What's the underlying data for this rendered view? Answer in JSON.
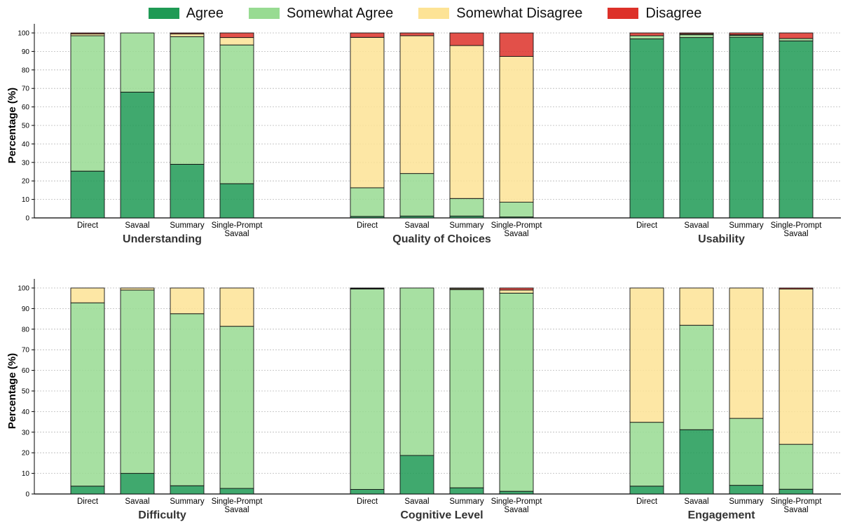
{
  "legend": [
    {
      "label": "Agree",
      "color": "#1f9a55"
    },
    {
      "label": "Somewhat Agree",
      "color": "#98db92"
    },
    {
      "label": "Somewhat Disagree",
      "color": "#fde395"
    },
    {
      "label": "Disagree",
      "color": "#dd3129"
    }
  ],
  "chart_data": [
    {
      "type": "bar",
      "stacked": true,
      "title": "Understanding",
      "ylabel": "Percentage (%)",
      "ylim": [
        0,
        100
      ],
      "categories": [
        "Direct",
        "Savaal",
        "Summary",
        "Single-Prompt\nSavaal"
      ],
      "series": [
        {
          "name": "Agree",
          "values": [
            25.3,
            68.0,
            29.0,
            18.5
          ]
        },
        {
          "name": "Somewhat Agree",
          "values": [
            73.2,
            32.0,
            69.0,
            75.0
          ]
        },
        {
          "name": "Somewhat Disagree",
          "values": [
            1.0,
            0,
            1.5,
            4.0
          ]
        },
        {
          "name": "Disagree",
          "values": [
            0.5,
            0,
            0.5,
            2.5
          ]
        }
      ]
    },
    {
      "type": "bar",
      "stacked": true,
      "title": "Quality of Choices",
      "ylim": [
        0,
        100
      ],
      "categories": [
        "Direct",
        "Savaal",
        "Summary",
        "Single-Prompt\nSavaal"
      ],
      "series": [
        {
          "name": "Agree",
          "values": [
            0.8,
            1.0,
            1.0,
            0.5
          ]
        },
        {
          "name": "Somewhat Agree",
          "values": [
            15.5,
            23.0,
            9.5,
            8.0
          ]
        },
        {
          "name": "Somewhat Disagree",
          "values": [
            81.3,
            74.5,
            82.7,
            78.8
          ]
        },
        {
          "name": "Disagree",
          "values": [
            2.4,
            1.5,
            6.8,
            12.7
          ]
        }
      ]
    },
    {
      "type": "bar",
      "stacked": true,
      "title": "Usability",
      "ylim": [
        0,
        100
      ],
      "categories": [
        "Direct",
        "Savaal",
        "Summary",
        "Single-Prompt\nSavaal"
      ],
      "series": [
        {
          "name": "Agree",
          "values": [
            96.8,
            97.5,
            97.7,
            95.7
          ]
        },
        {
          "name": "Somewhat Agree",
          "values": [
            1.7,
            1.5,
            1.0,
            1.3
          ]
        },
        {
          "name": "Somewhat Disagree",
          "values": [
            0,
            0.5,
            0.3,
            0
          ]
        },
        {
          "name": "Disagree",
          "values": [
            1.5,
            0.5,
            1.0,
            3.0
          ]
        }
      ]
    },
    {
      "type": "bar",
      "stacked": true,
      "title": "Difficulty",
      "ylabel": "Percentage (%)",
      "ylim": [
        0,
        100
      ],
      "categories": [
        "Direct",
        "Savaal",
        "Summary",
        "Single-Prompt\nSavaal"
      ],
      "series": [
        {
          "name": "Agree",
          "values": [
            3.8,
            10.0,
            4.0,
            2.7
          ]
        },
        {
          "name": "Somewhat Agree",
          "values": [
            89.0,
            89.0,
            83.5,
            78.7
          ]
        },
        {
          "name": "Somewhat Disagree",
          "values": [
            7.2,
            1.0,
            12.5,
            18.6
          ]
        },
        {
          "name": "Disagree",
          "values": [
            0,
            0,
            0,
            0
          ]
        }
      ]
    },
    {
      "type": "bar",
      "stacked": true,
      "title": "Cognitive Level",
      "ylim": [
        0,
        100
      ],
      "categories": [
        "Direct",
        "Savaal",
        "Summary",
        "Single-Prompt\nSavaal"
      ],
      "series": [
        {
          "name": "Agree",
          "values": [
            2.2,
            18.7,
            3.0,
            1.3
          ]
        },
        {
          "name": "Somewhat Agree",
          "values": [
            97.3,
            81.3,
            96.2,
            96.2
          ]
        },
        {
          "name": "Somewhat Disagree",
          "values": [
            0.3,
            0,
            0.5,
            1.5
          ]
        },
        {
          "name": "Disagree",
          "values": [
            0.2,
            0,
            0.3,
            1.0
          ]
        }
      ]
    },
    {
      "type": "bar",
      "stacked": true,
      "title": "Engagement",
      "ylim": [
        0,
        100
      ],
      "categories": [
        "Direct",
        "Savaal",
        "Summary",
        "Single-Prompt\nSavaal"
      ],
      "series": [
        {
          "name": "Agree",
          "values": [
            3.8,
            31.2,
            4.2,
            2.3
          ]
        },
        {
          "name": "Somewhat Agree",
          "values": [
            31.0,
            50.7,
            32.5,
            21.8
          ]
        },
        {
          "name": "Somewhat Disagree",
          "values": [
            65.2,
            18.1,
            63.3,
            75.4
          ]
        },
        {
          "name": "Disagree",
          "values": [
            0,
            0,
            0,
            0.5
          ]
        }
      ]
    }
  ]
}
